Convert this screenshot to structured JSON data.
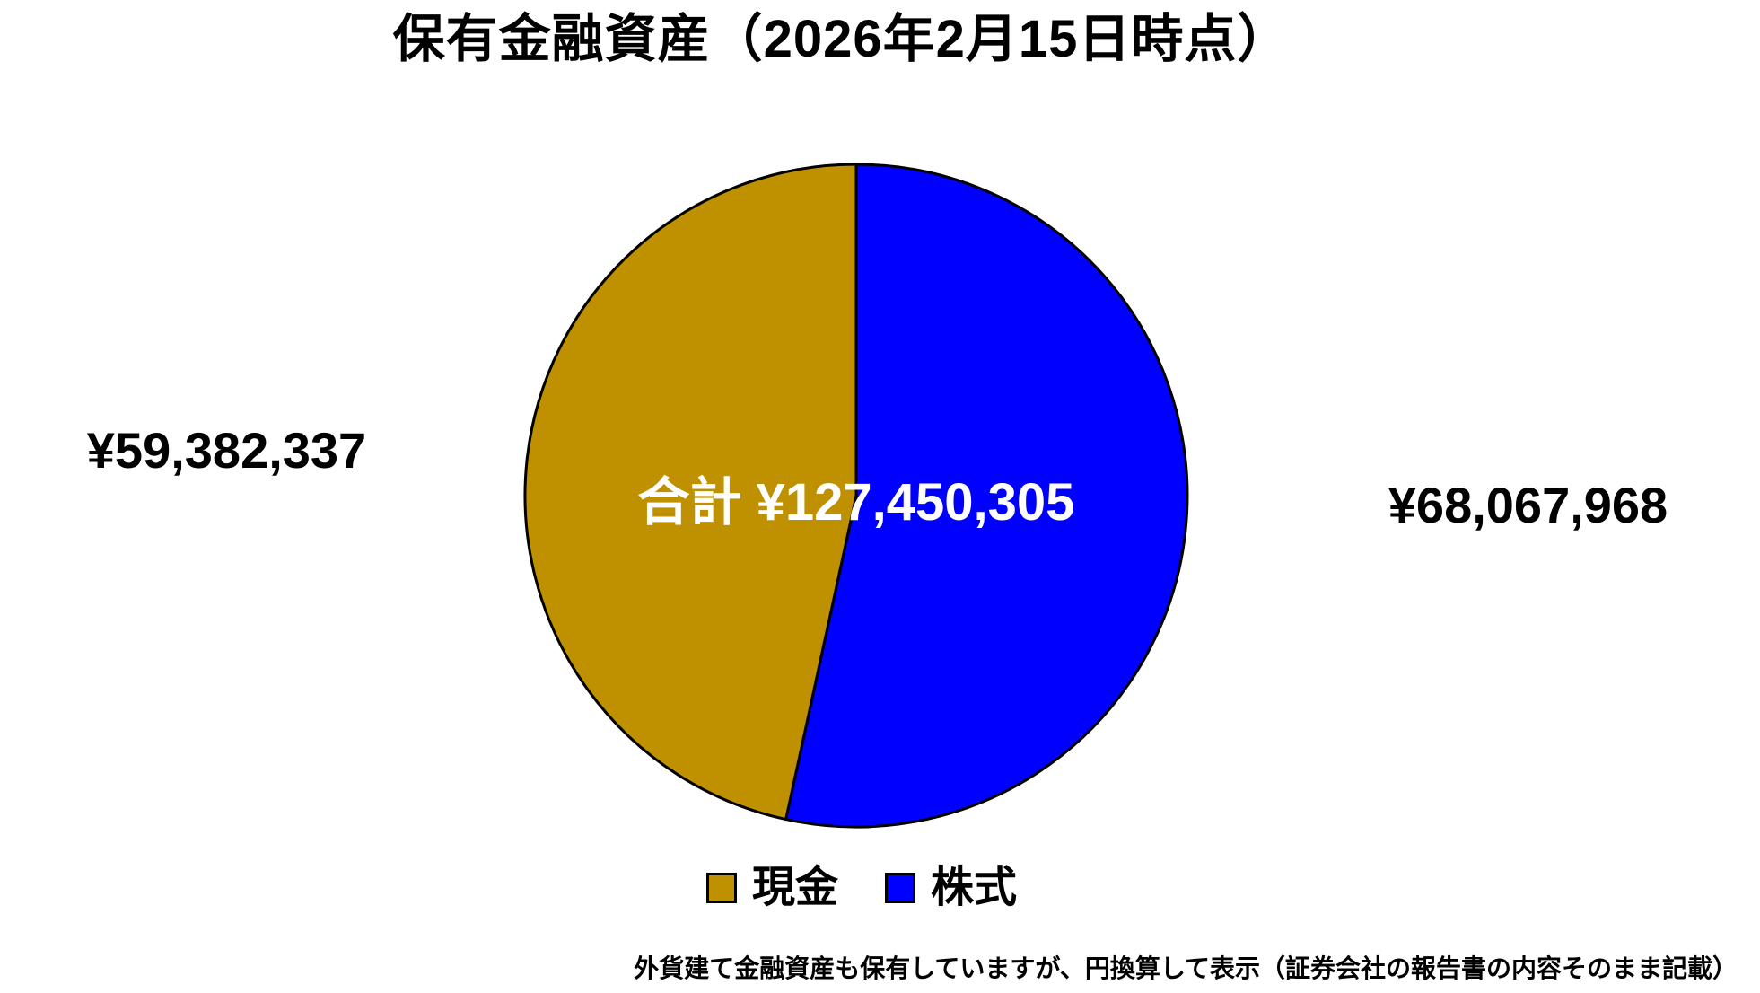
{
  "chart_data": {
    "type": "pie",
    "title": "保有金融資産（2026年2月15日時点）",
    "total_value": 127450305,
    "total_label": "合計 ¥127,450,305",
    "slices": [
      {
        "label": "現金",
        "value": 59382337,
        "display": "¥59,382,337",
        "color": "#BF9000"
      },
      {
        "label": "株式",
        "value": 68067968,
        "display": "¥68,067,968",
        "color": "#0000FF"
      }
    ],
    "outline_color": "#000000",
    "legend_position": "bottom",
    "start_angle_deg": 0,
    "footnote": "外貨建て金融資産も保有していますが、円換算して表示（証券会社の報告書の内容そのまま記載）"
  }
}
